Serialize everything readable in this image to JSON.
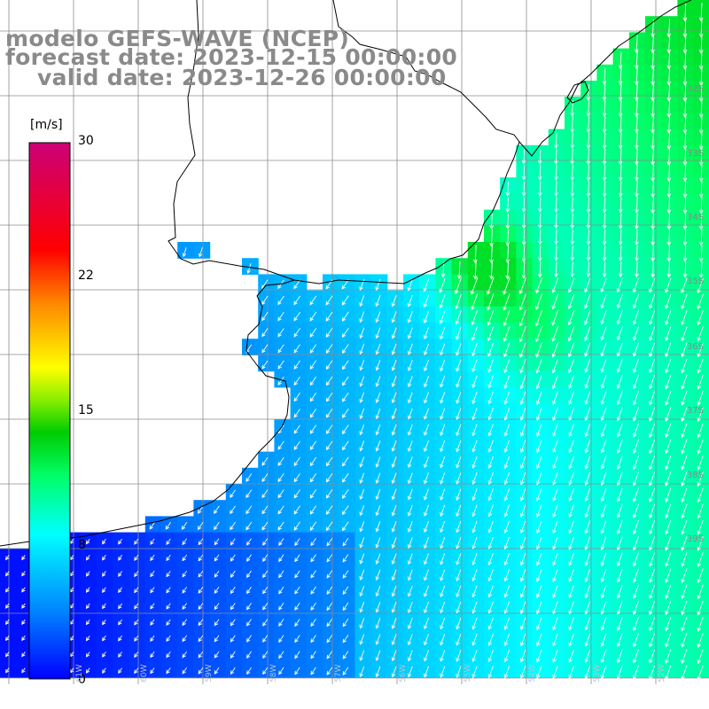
{
  "title": {
    "line1": "modelo GEFS-WAVE (NCEP)",
    "line2": "forecast date: 2023-12-15 00:00:00",
    "line3": "valid date: 2023-12-26 00:00:00"
  },
  "colorbar": {
    "unit": "[m/s]",
    "ticks": [
      "30",
      "22",
      "15",
      "8",
      "0"
    ],
    "tick_values": [
      30,
      22,
      15,
      8,
      0
    ],
    "range": [
      0,
      30
    ]
  },
  "lat_labels": [
    "32S",
    "33S",
    "34S",
    "35S",
    "36S",
    "37S",
    "38S",
    "39S"
  ],
  "lon_labels": [
    "61W",
    "60W",
    "59W",
    "58W",
    "57W",
    "56W",
    "55W",
    "54W",
    "53W",
    "52W"
  ],
  "colors": {
    "land": "#ffffff",
    "coast": "#000000",
    "grid": "#8c8c8c",
    "arrow": "#ffffff"
  }
}
